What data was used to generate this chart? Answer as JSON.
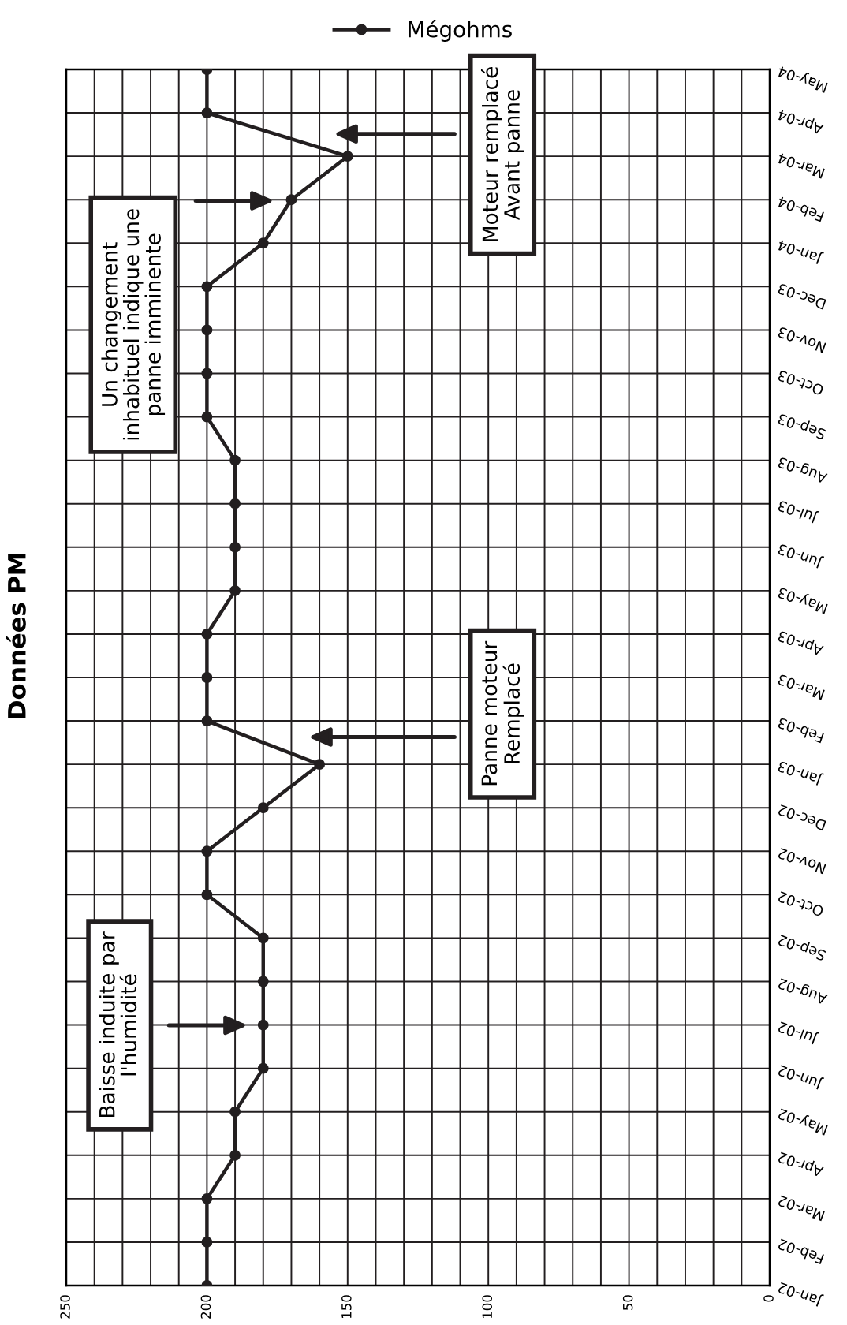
{
  "chart_data": {
    "type": "line",
    "title": "Données PM",
    "orientation": "horizontal",
    "categories": [
      "May-04",
      "Apr-04",
      "Mar-04",
      "Feb-04",
      "Jan-04",
      "Dec-03",
      "Nov-03",
      "Oct-03",
      "Sep-03",
      "Aug-03",
      "Jul-03",
      "Jun-03",
      "May-03",
      "Apr-03",
      "Mar-03",
      "Feb-03",
      "Jan-03",
      "Dec-02",
      "Nov-02",
      "Oct-02",
      "Sep-02",
      "Aug-02",
      "Jul-02",
      "Jun-02",
      "May-02",
      "Apr-02",
      "Mar-02",
      "Feb-02",
      "Jan-02"
    ],
    "series": [
      {
        "name": "Mégohms",
        "color": "#231f20",
        "values": [
          200,
          200,
          150,
          170,
          180,
          200,
          200,
          200,
          200,
          190,
          190,
          190,
          190,
          200,
          200,
          200,
          160,
          180,
          200,
          200,
          180,
          180,
          180,
          180,
          190,
          190,
          200,
          200,
          200
        ]
      }
    ],
    "xlim": [
      250,
      0
    ],
    "xticks": [
      250,
      {
        "value": 240,
        "label": null
      },
      {
        "value": 230,
        "label": null
      },
      {
        "value": 220,
        "label": null
      },
      {
        "value": 210,
        "label": null
      },
      200,
      {
        "value": 190,
        "label": null
      },
      {
        "value": 180,
        "label": null
      },
      {
        "value": 170,
        "label": null
      },
      {
        "value": 160,
        "label": null
      },
      150,
      {
        "value": 140,
        "label": null
      },
      {
        "value": 130,
        "label": null
      },
      {
        "value": 120,
        "label": null
      },
      {
        "value": 110,
        "label": null
      },
      100,
      {
        "value": 90,
        "label": null
      },
      {
        "value": 80,
        "label": null
      },
      {
        "value": 70,
        "label": null
      },
      {
        "value": 60,
        "label": null
      },
      50,
      {
        "value": 40,
        "label": null
      },
      {
        "value": 30,
        "label": null
      },
      {
        "value": 20,
        "label": null
      },
      {
        "value": 10,
        "label": null
      },
      0
    ],
    "grid": true,
    "legend": "top",
    "marker": "circle",
    "line_style": "solid",
    "annotations": [
      "Baisse induite par\nl'humidité",
      "Panne moteur\nRemplacé",
      "Un changement\ninhabituel indique une\npanne imminente",
      "Moteur remplacé\nAvant panne"
    ]
  }
}
